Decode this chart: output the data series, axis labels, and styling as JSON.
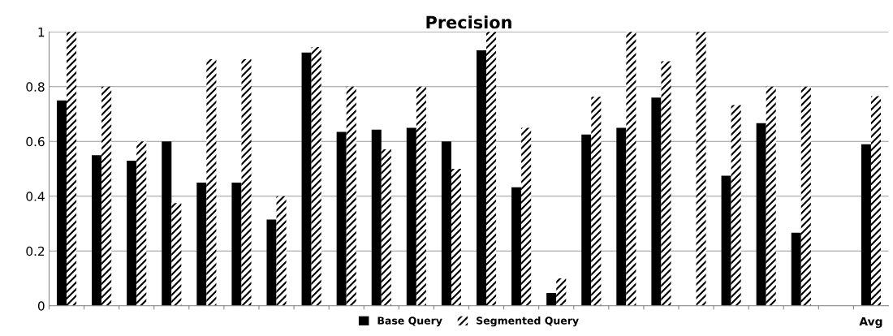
{
  "chart_data": {
    "type": "bar",
    "title": "Precision",
    "categories": [
      null,
      null,
      null,
      null,
      null,
      null,
      null,
      null,
      null,
      null,
      null,
      null,
      null,
      null,
      null,
      null,
      null,
      null,
      null,
      null,
      null,
      null,
      null,
      "Avg"
    ],
    "series": [
      {
        "name": "Base Query",
        "color": "#000000",
        "values": [
          0.75,
          0.55,
          0.53,
          0.6,
          0.45,
          0.45,
          0.315,
          0.925,
          0.635,
          0.643,
          0.65,
          0.6,
          0.933,
          0.433,
          0.047,
          0.625,
          0.65,
          0.76,
          null,
          0.475,
          0.667,
          0.267,
          null,
          0.59
        ]
      },
      {
        "name": "Segmented Query",
        "color": "#000000",
        "values": [
          1,
          0.8,
          0.6,
          0.375,
          0.9,
          0.9,
          0.4,
          0.945,
          0.8,
          0.571,
          0.8,
          0.5,
          1,
          0.65,
          0.1,
          0.763,
          1,
          0.893,
          1,
          0.733,
          0.8,
          0.8,
          null,
          0.765
        ]
      }
    ],
    "ylim": [
      0,
      1
    ],
    "yticks": [
      0,
      0.2,
      0.4,
      0.6,
      0.8,
      1
    ],
    "grid": "y",
    "legend": "bottom"
  }
}
